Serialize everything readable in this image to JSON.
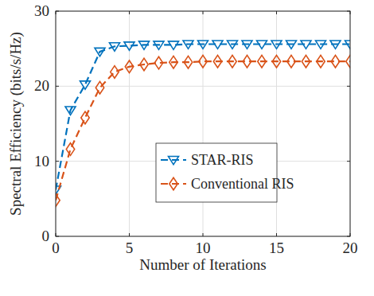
{
  "chart_data": {
    "type": "line",
    "x_label": "Number of Iterations",
    "y_label": "Spectral Efficiency (bits/s/Hz)",
    "x": [
      0,
      1,
      2,
      3,
      4,
      5,
      6,
      7,
      8,
      9,
      10,
      11,
      12,
      13,
      14,
      15,
      16,
      17,
      18,
      19,
      20
    ],
    "series": [
      {
        "name": "STAR-RIS",
        "color": "#0072bd",
        "marker": "triangle-down",
        "line_style": "dashed",
        "values": [
          6.2,
          16.8,
          20.2,
          24.6,
          25.3,
          25.4,
          25.5,
          25.5,
          25.5,
          25.6,
          25.6,
          25.6,
          25.6,
          25.6,
          25.6,
          25.6,
          25.6,
          25.6,
          25.6,
          25.6,
          25.6
        ]
      },
      {
        "name": "Conventional RIS",
        "color": "#d95319",
        "marker": "diamond",
        "line_style": "dashed",
        "values": [
          4.8,
          11.6,
          15.8,
          19.8,
          21.9,
          22.6,
          22.9,
          23.1,
          23.2,
          23.2,
          23.3,
          23.3,
          23.3,
          23.3,
          23.3,
          23.3,
          23.3,
          23.3,
          23.3,
          23.3,
          23.3
        ]
      }
    ],
    "xlim": [
      0,
      20
    ],
    "xticks": [
      0,
      5,
      10,
      15,
      20
    ],
    "ylim": [
      0,
      30
    ],
    "yticks": [
      0,
      10,
      20,
      30
    ],
    "grid": true,
    "legend": "center right"
  }
}
